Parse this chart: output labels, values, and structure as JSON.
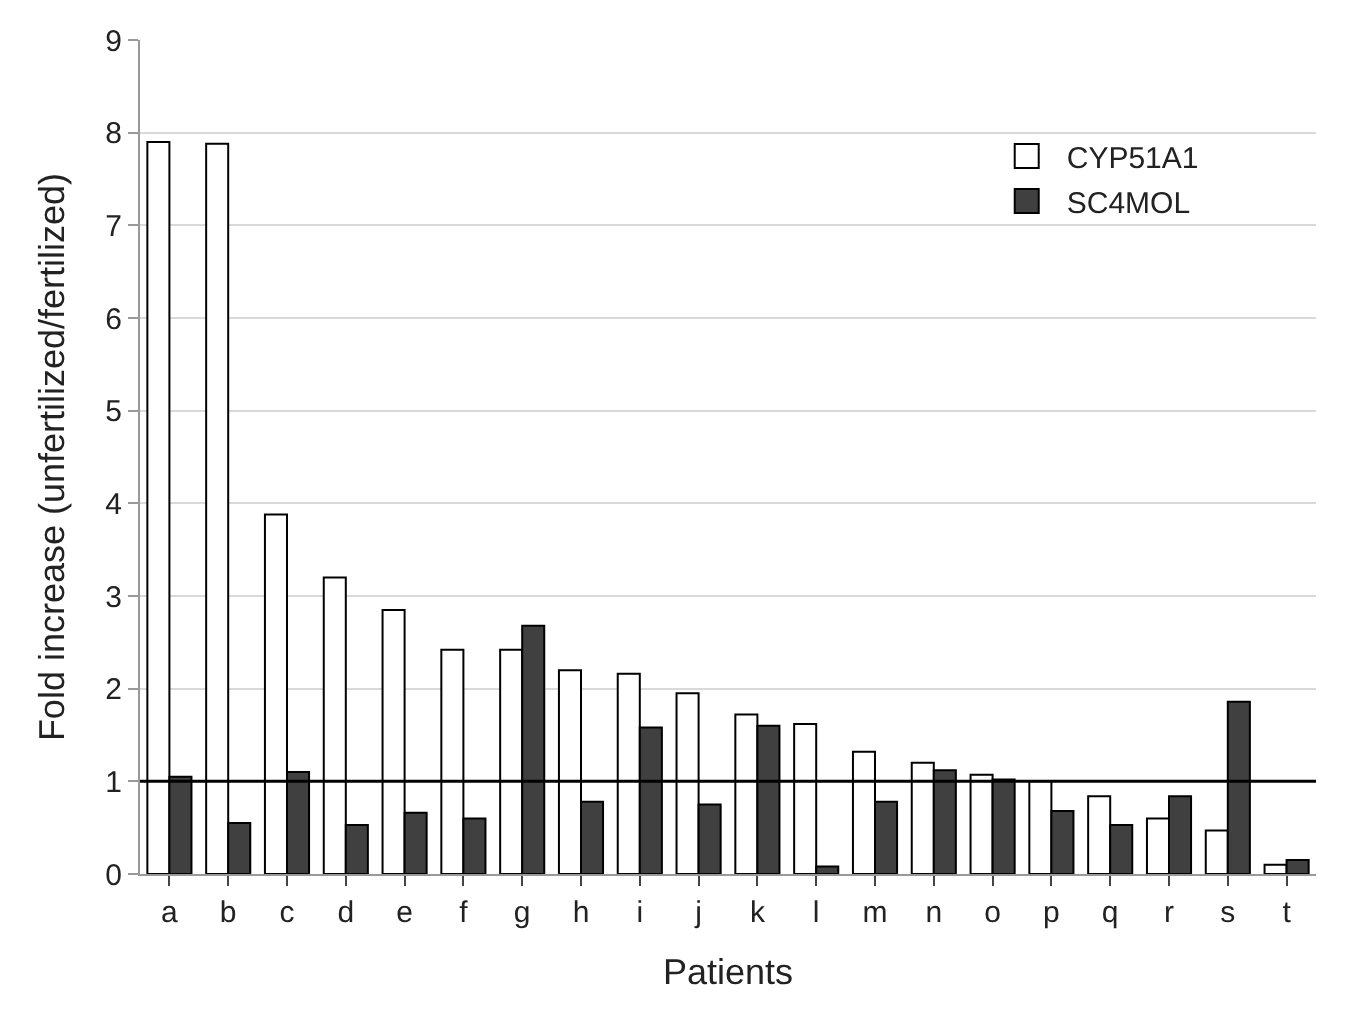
{
  "chart_data": {
    "type": "bar",
    "xlabel": "Patients",
    "ylabel": "Fold increase (unfertilized/fertilized)",
    "categories": [
      "a",
      "b",
      "c",
      "d",
      "e",
      "f",
      "g",
      "h",
      "i",
      "j",
      "k",
      "l",
      "m",
      "n",
      "o",
      "p",
      "q",
      "r",
      "s",
      "t"
    ],
    "series": [
      {
        "name": "CYP51A1",
        "color": "#ffffff",
        "values": [
          7.9,
          7.88,
          3.88,
          3.2,
          2.85,
          2.42,
          2.42,
          2.2,
          2.16,
          1.95,
          1.72,
          1.62,
          1.32,
          1.2,
          1.07,
          1.0,
          0.84,
          0.6,
          0.47,
          0.1
        ]
      },
      {
        "name": "SC4MOL",
        "color": "#404040",
        "values": [
          1.05,
          0.55,
          1.1,
          0.53,
          0.66,
          0.6,
          2.68,
          0.78,
          1.58,
          0.75,
          1.6,
          0.08,
          0.78,
          1.12,
          1.02,
          0.68,
          0.53,
          0.84,
          1.86,
          0.15
        ]
      }
    ],
    "ylim": [
      0,
      9
    ],
    "yticks": [
      0,
      1,
      2,
      3,
      4,
      5,
      6,
      7,
      8,
      9
    ],
    "grid": "y",
    "legend": "top right",
    "ref_lines": [
      {
        "axis": "y",
        "value": 1,
        "color": "#000000"
      }
    ]
  }
}
